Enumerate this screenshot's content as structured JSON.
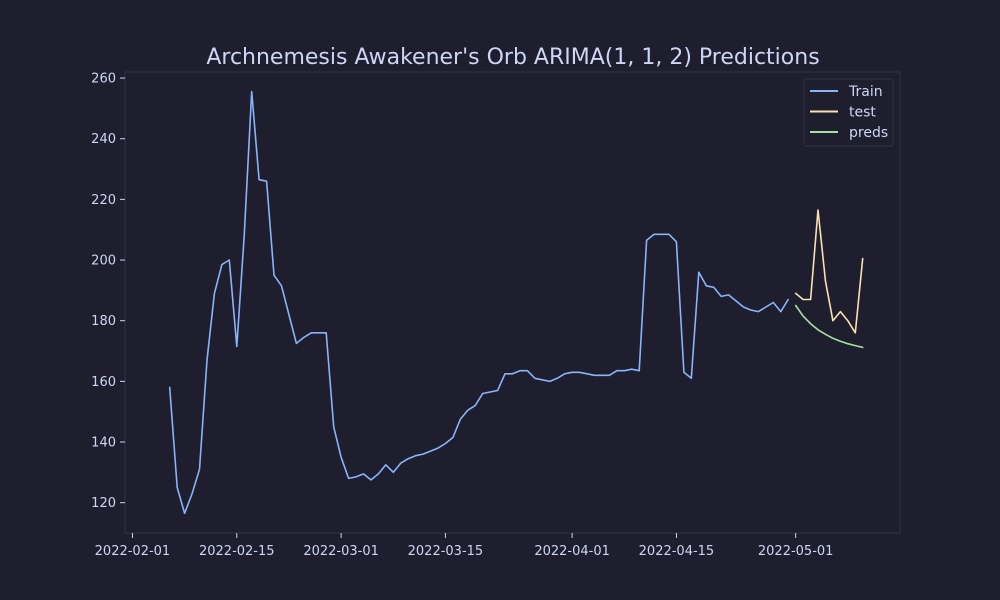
{
  "chart_data": {
    "type": "line",
    "title": "Archnemesis Awakener's Orb ARIMA(1, 1, 2) Predictions",
    "xlabel": "",
    "ylabel": "",
    "xlim": [
      "2022-01-31",
      "2022-05-15"
    ],
    "ylim": [
      110,
      262
    ],
    "x_ticks": [
      "2022-02-01",
      "2022-02-15",
      "2022-03-01",
      "2022-03-15",
      "2022-04-01",
      "2022-04-15",
      "2022-05-01"
    ],
    "y_ticks": [
      120,
      140,
      160,
      180,
      200,
      220,
      240,
      260
    ],
    "grid": false,
    "legend_position": "top-right",
    "series": [
      {
        "name": "Train",
        "color": "#89b4fa",
        "x": [
          "2022-02-06",
          "2022-02-07",
          "2022-02-08",
          "2022-02-09",
          "2022-02-10",
          "2022-02-11",
          "2022-02-12",
          "2022-02-13",
          "2022-02-14",
          "2022-02-15",
          "2022-02-16",
          "2022-02-17",
          "2022-02-18",
          "2022-02-19",
          "2022-02-20",
          "2022-02-21",
          "2022-02-22",
          "2022-02-23",
          "2022-02-24",
          "2022-02-25",
          "2022-02-26",
          "2022-02-27",
          "2022-02-28",
          "2022-03-01",
          "2022-03-02",
          "2022-03-03",
          "2022-03-04",
          "2022-03-05",
          "2022-03-06",
          "2022-03-07",
          "2022-03-08",
          "2022-03-09",
          "2022-03-10",
          "2022-03-11",
          "2022-03-12",
          "2022-03-13",
          "2022-03-14",
          "2022-03-15",
          "2022-03-16",
          "2022-03-17",
          "2022-03-18",
          "2022-03-19",
          "2022-03-20",
          "2022-03-21",
          "2022-03-22",
          "2022-03-23",
          "2022-03-24",
          "2022-03-25",
          "2022-03-26",
          "2022-03-27",
          "2022-03-28",
          "2022-03-29",
          "2022-03-30",
          "2022-03-31",
          "2022-04-01",
          "2022-04-02",
          "2022-04-03",
          "2022-04-04",
          "2022-04-05",
          "2022-04-06",
          "2022-04-07",
          "2022-04-08",
          "2022-04-09",
          "2022-04-10",
          "2022-04-11",
          "2022-04-12",
          "2022-04-13",
          "2022-04-14",
          "2022-04-15",
          "2022-04-16",
          "2022-04-17",
          "2022-04-18",
          "2022-04-19",
          "2022-04-20",
          "2022-04-21",
          "2022-04-22",
          "2022-04-23",
          "2022-04-24",
          "2022-04-25",
          "2022-04-26",
          "2022-04-27",
          "2022-04-28",
          "2022-04-29",
          "2022-04-30"
        ],
        "y": [
          158,
          125,
          116.5,
          123,
          131,
          167,
          189,
          198.5,
          200,
          171.5,
          208,
          255.5,
          226.5,
          226,
          195,
          191.5,
          182,
          172.5,
          174.5,
          176,
          176,
          176,
          145,
          135,
          128,
          128.5,
          129.5,
          127.5,
          129.5,
          132.5,
          130,
          133,
          134.5,
          135.5,
          136,
          137,
          138,
          139.5,
          141.5,
          147.5,
          150.5,
          152,
          156,
          156.5,
          157,
          162.5,
          162.5,
          163.5,
          163.5,
          161,
          160.5,
          160,
          161,
          162.5,
          163,
          163,
          162.5,
          162,
          162,
          162,
          163.5,
          163.5,
          164,
          163.5,
          206.5,
          208.5,
          208.5,
          208.5,
          206,
          163,
          161,
          196,
          191.5,
          191,
          188,
          188.5,
          186.5,
          184.5,
          183.5,
          183,
          184.5,
          186,
          183,
          187
        ]
      },
      {
        "name": "test",
        "color": "#f9e2af",
        "x": [
          "2022-05-01",
          "2022-05-02",
          "2022-05-03",
          "2022-05-04",
          "2022-05-05",
          "2022-05-06",
          "2022-05-07",
          "2022-05-08",
          "2022-05-09",
          "2022-05-10"
        ],
        "y": [
          189,
          187,
          187,
          216.5,
          193,
          180,
          183,
          180,
          176,
          200.5
        ]
      },
      {
        "name": "preds",
        "color": "#a6e3a1",
        "x": [
          "2022-05-01",
          "2022-05-02",
          "2022-05-03",
          "2022-05-04",
          "2022-05-05",
          "2022-05-06",
          "2022-05-07",
          "2022-05-08",
          "2022-05-09",
          "2022-05-10"
        ],
        "y": [
          185,
          181.5,
          179,
          177,
          175.5,
          174.2,
          173.2,
          172.4,
          171.8,
          171.2
        ]
      }
    ]
  }
}
